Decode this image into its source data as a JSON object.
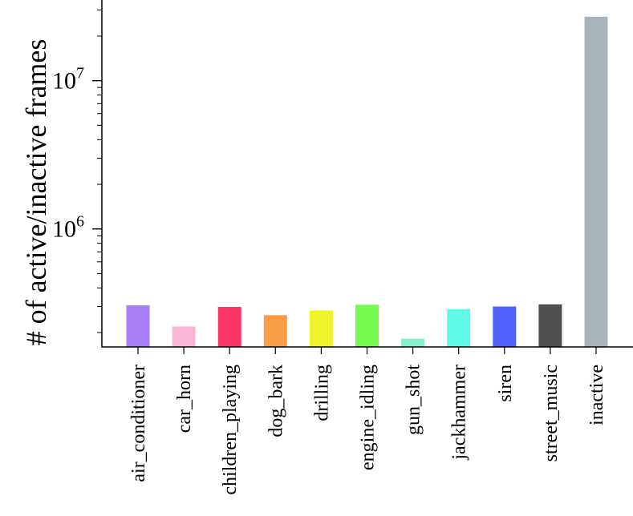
{
  "chart_data": {
    "type": "bar",
    "title": "",
    "xlabel": "",
    "ylabel": "# of active/inactive frames",
    "yscale": "log",
    "ylim": [
      160000,
      35000000
    ],
    "major_ticks": [
      {
        "value": 1000000,
        "base": "10",
        "exp": "6"
      },
      {
        "value": 10000000,
        "base": "10",
        "exp": "7"
      }
    ],
    "categories": [
      "air_conditioner",
      "car_horn",
      "children_playing",
      "dog_bark",
      "drilling",
      "engine_idling",
      "gun_shot",
      "jackhammer",
      "siren",
      "street_music",
      "inactive"
    ],
    "values": [
      305000,
      220000,
      298000,
      262000,
      282000,
      308000,
      182000,
      288000,
      300000,
      310000,
      27000000
    ],
    "colors": [
      "#a57df7",
      "#fab5d6",
      "#fb3664",
      "#fb9d45",
      "#eff32c",
      "#74fa4f",
      "#84f1cb",
      "#60fbe6",
      "#5161fb",
      "#4f4f4f",
      "#a7b5ba"
    ],
    "grid": false,
    "legend": "none"
  }
}
